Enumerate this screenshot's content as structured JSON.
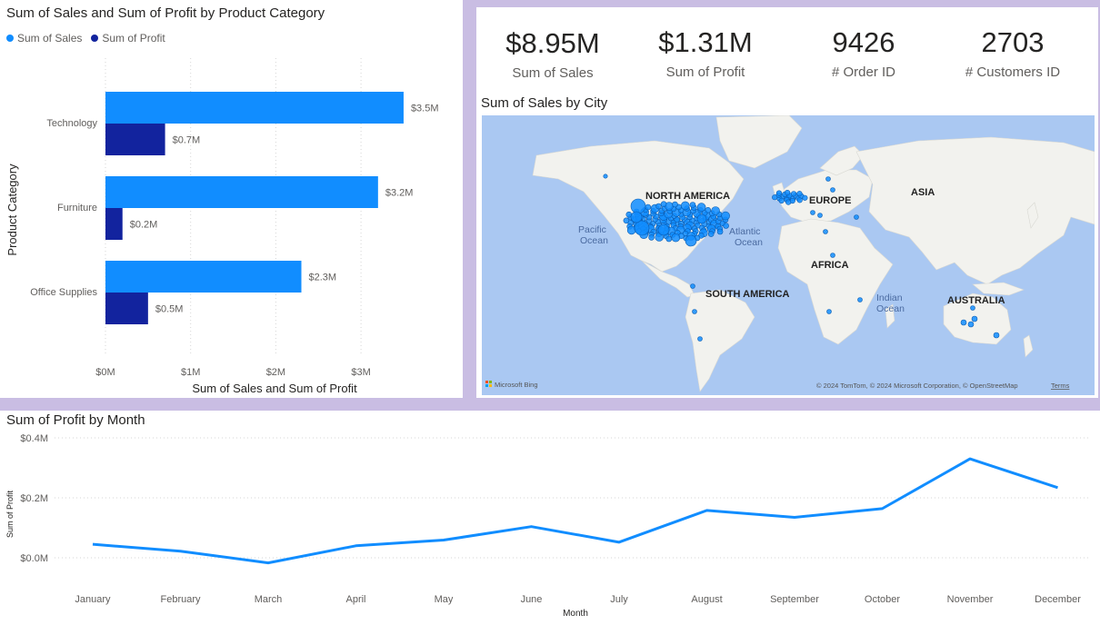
{
  "bar_visual": {
    "title": "Sum of Sales and Sum of Profit by Product Category",
    "legend": [
      {
        "label": "Sum of Sales",
        "color": "#118dff"
      },
      {
        "label": "Sum of Profit",
        "color": "#12239e"
      }
    ]
  },
  "kpis": [
    {
      "value": "$8.95M",
      "label": "Sum of Sales"
    },
    {
      "value": "$1.31M",
      "label": "Sum of Profit"
    },
    {
      "value": "9426",
      "label": "# Order ID"
    },
    {
      "value": "2703",
      "label": "# Customers ID"
    }
  ],
  "map_visual": {
    "title": "Sum of Sales by City",
    "continents": [
      "NORTH AMERICA",
      "EUROPE",
      "ASIA",
      "AFRICA",
      "SOUTH AMERICA",
      "AUSTRALIA"
    ],
    "oceans": [
      "Pacific",
      "Ocean",
      "Atlantic",
      "Ocean",
      "Indian",
      "Ocean"
    ],
    "bing_label": "Microsoft Bing",
    "copyright": "© 2024 TomTom, © 2024 Microsoft Corporation, © OpenStreetMap",
    "terms": "Terms",
    "bubble_color": "#118dff"
  },
  "line_visual": {
    "title": "Sum of Profit by Month"
  },
  "chart_data": [
    {
      "type": "bar",
      "orientation": "horizontal",
      "title": "Sum of Sales and Sum of Profit by Product Category",
      "categories": [
        "Technology",
        "Furniture",
        "Office Supplies"
      ],
      "series": [
        {
          "name": "Sum of Sales",
          "values": [
            3.5,
            3.2,
            2.3
          ],
          "labels": [
            "$3.5M",
            "$3.2M",
            "$2.3M"
          ],
          "color": "#118dff"
        },
        {
          "name": "Sum of Profit",
          "values": [
            0.7,
            0.2,
            0.5
          ],
          "labels": [
            "$0.7M",
            "$0.2M",
            "$0.5M"
          ],
          "color": "#12239e"
        }
      ],
      "xlabel": "Sum of Sales and Sum of Profit",
      "ylabel": "Product Category",
      "xticks": [
        "$0M",
        "$1M",
        "$2M",
        "$3M"
      ],
      "xtick_values": [
        0,
        1,
        2,
        3
      ],
      "xlim": [
        0,
        3.72
      ],
      "unit": "millions of dollars",
      "legend_position": "top-left",
      "grid": true
    },
    {
      "type": "line",
      "title": "Sum of Profit by Month",
      "categories": [
        "January",
        "February",
        "March",
        "April",
        "May",
        "June",
        "July",
        "August",
        "September",
        "October",
        "November",
        "December"
      ],
      "series": [
        {
          "values": [
            0.045,
            0.022,
            -0.017,
            0.04,
            0.059,
            0.104,
            0.052,
            0.158,
            0.135,
            0.164,
            0.33,
            0.234
          ],
          "color": "#118dff"
        }
      ],
      "xlabel": "Month",
      "ylabel": "Sum of Profit",
      "yticks": [
        "$0.0M",
        "$0.2M",
        "$0.4M"
      ],
      "ytick_values": [
        0,
        0.2,
        0.4
      ],
      "ylim": [
        -0.035,
        0.4
      ],
      "unit": "millions of dollars",
      "grid": true
    }
  ]
}
